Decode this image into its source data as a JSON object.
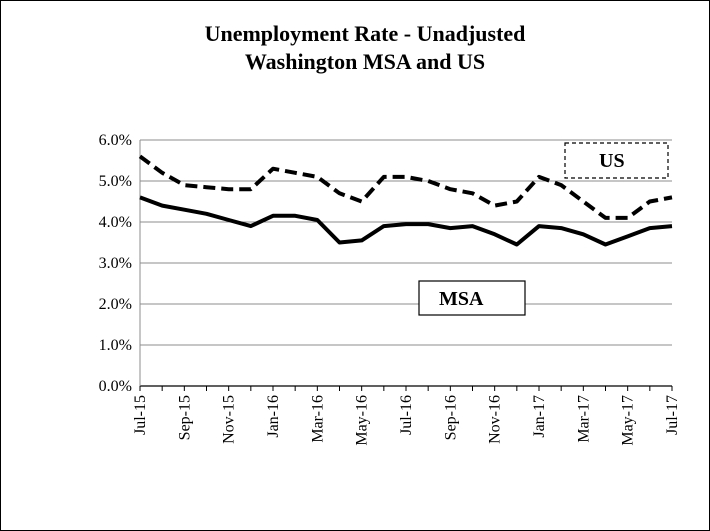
{
  "chart_data": {
    "type": "line",
    "title": "Unemployment Rate - Unadjusted",
    "subtitle": "Washington MSA and US",
    "ylim": [
      0,
      6
    ],
    "y_ticks": [
      "0.0%",
      "1.0%",
      "2.0%",
      "3.0%",
      "4.0%",
      "5.0%",
      "6.0%"
    ],
    "y_tick_values": [
      0,
      1,
      2,
      3,
      4,
      5,
      6
    ],
    "x_labels": [
      "Jul-15",
      "Sep-15",
      "Nov-15",
      "Jan-16",
      "Mar-16",
      "May-16",
      "Jul-16",
      "Sep-16",
      "Nov-16",
      "Jan-17",
      "Mar-17",
      "May-17",
      "Jul-17"
    ],
    "x": [
      "Jul-15",
      "Aug-15",
      "Sep-15",
      "Oct-15",
      "Nov-15",
      "Dec-15",
      "Jan-16",
      "Feb-16",
      "Mar-16",
      "Apr-16",
      "May-16",
      "Jun-16",
      "Jul-16",
      "Aug-16",
      "Sep-16",
      "Oct-16",
      "Nov-16",
      "Dec-16",
      "Jan-17",
      "Feb-17",
      "Mar-17",
      "Apr-17",
      "May-17",
      "Jun-17",
      "Jul-17"
    ],
    "grid": true,
    "series": [
      {
        "name": "US",
        "style": "dashed",
        "color": "#000000",
        "values": [
          5.6,
          5.2,
          4.9,
          4.85,
          4.8,
          4.8,
          5.3,
          5.2,
          5.1,
          4.7,
          4.5,
          5.1,
          5.1,
          5.0,
          4.8,
          4.7,
          4.4,
          4.5,
          5.1,
          4.9,
          4.5,
          4.1,
          4.1,
          4.5,
          4.6
        ]
      },
      {
        "name": "MSA",
        "style": "solid",
        "color": "#000000",
        "values": [
          4.6,
          4.4,
          4.3,
          4.2,
          4.05,
          3.9,
          4.15,
          4.15,
          4.05,
          3.5,
          3.55,
          3.9,
          3.95,
          3.95,
          3.85,
          3.9,
          3.7,
          3.45,
          3.9,
          3.85,
          3.7,
          3.45,
          3.65,
          3.85,
          3.9
        ]
      }
    ],
    "legend": [
      {
        "series": "US",
        "text": "US",
        "style": "dashed"
      },
      {
        "series": "MSA",
        "text": "MSA",
        "style": "solid"
      }
    ]
  }
}
